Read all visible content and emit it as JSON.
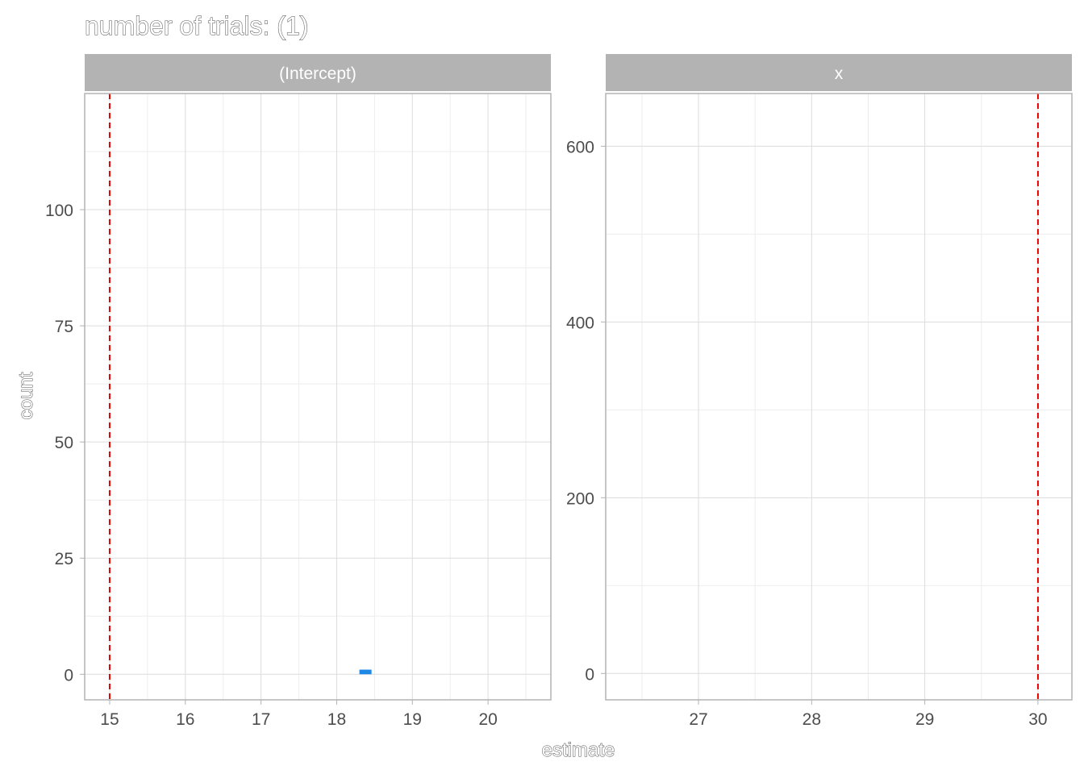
{
  "chart_data": {
    "type": "bar",
    "title": "number of trials: (1)",
    "xlabel": "estimate",
    "ylabel": "count",
    "grid": true,
    "legend": "none",
    "colors": {
      "bar": "#1e88e5",
      "reference_line": "#e60000",
      "strip": "#b3b3b3",
      "grid_major": "#dcdcdc",
      "grid_minor": "#ededed",
      "panel_border": "#b3b3b3"
    },
    "panels": [
      {
        "strip": "(Intercept)",
        "xlim": [
          14.67,
          20.83
        ],
        "ylim": [
          -5.5,
          125
        ],
        "xticks": [
          15,
          16,
          17,
          18,
          19,
          20
        ],
        "yticks": [
          0,
          25,
          50,
          75,
          100
        ],
        "reference_line": 15,
        "bins": [
          {
            "x0": 18.3,
            "x1": 18.46,
            "count": 1
          }
        ]
      },
      {
        "strip": "x",
        "xlim": [
          26.18,
          30.3
        ],
        "ylim": [
          -30,
          660
        ],
        "xticks": [
          27,
          28,
          29,
          30
        ],
        "yticks": [
          0,
          200,
          400,
          600
        ],
        "reference_line": 30,
        "bins": []
      }
    ]
  }
}
